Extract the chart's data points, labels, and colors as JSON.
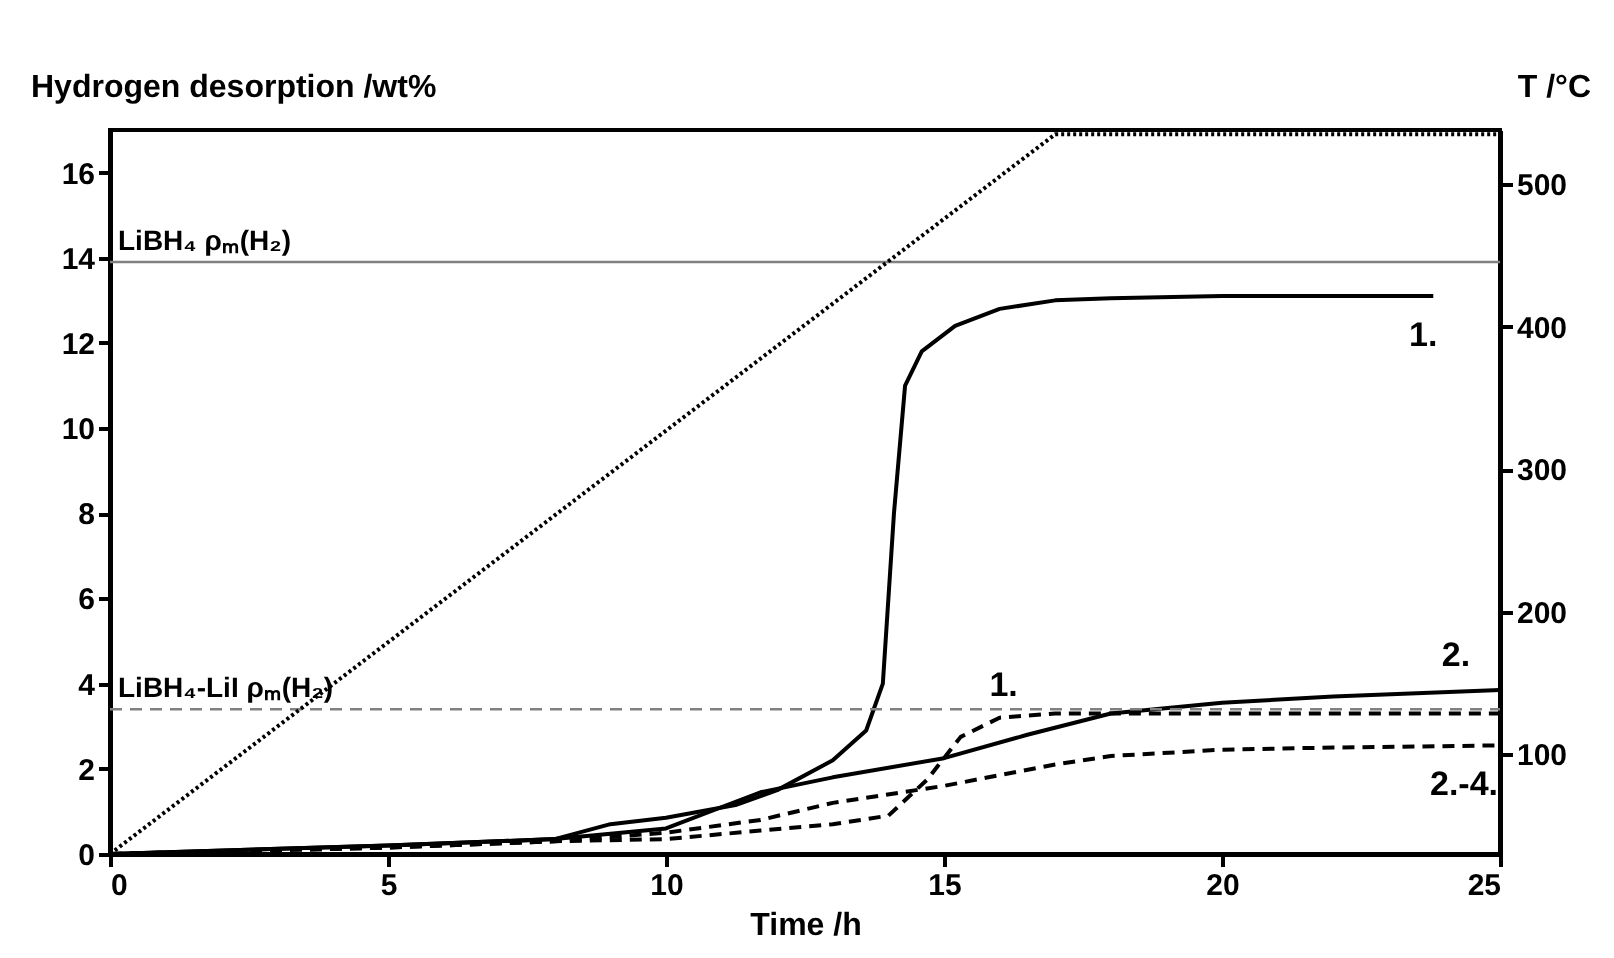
{
  "chart_data": {
    "type": "line",
    "xlabel": "Time /h",
    "ylabel": "Hydrogen desorption /wt%",
    "y2label": "T /°C",
    "xlim": [
      0,
      25
    ],
    "xticks": [
      0,
      5,
      10,
      15,
      20,
      25
    ],
    "ylim": [
      0,
      17
    ],
    "yticks": [
      0,
      2,
      4,
      6,
      8,
      10,
      12,
      14,
      16
    ],
    "y2lim": [
      30,
      538
    ],
    "y2ticks": [
      100,
      200,
      300,
      400,
      500
    ],
    "grid": false,
    "marker": "none",
    "series": [
      {
        "color": "#000000",
        "line_style": "dotted",
        "axis": "y2",
        "x": [
          0,
          17,
          25
        ],
        "values": [
          30,
          535,
          535
        ]
      },
      {
        "name": "1.",
        "color": "#000000",
        "line_style": "solid",
        "x": [
          0,
          5,
          8,
          9,
          10,
          11.25,
          12,
          13,
          13.6,
          13.9,
          14.1,
          14.3,
          14.6,
          15.2,
          16,
          17,
          18,
          20,
          23.8
        ],
        "values": [
          0,
          0.2,
          0.35,
          0.7,
          0.85,
          1.15,
          1.5,
          2.2,
          2.9,
          4,
          8,
          11,
          11.8,
          12.4,
          12.8,
          13,
          13.05,
          13.1,
          13.1
        ]
      },
      {
        "name": "2.",
        "color": "#000000",
        "line_style": "solid",
        "x": [
          0,
          5,
          8,
          10,
          11.7,
          13,
          15,
          16.5,
          18,
          20,
          22,
          25
        ],
        "values": [
          0,
          0.2,
          0.35,
          0.6,
          1.45,
          1.8,
          2.25,
          2.8,
          3.3,
          3.55,
          3.7,
          3.85
        ]
      },
      {
        "name": "1.",
        "color": "#000000",
        "line_style": "dashed",
        "x": [
          0,
          5,
          8,
          10,
          11.7,
          13,
          14,
          14.7,
          15.3,
          16,
          17,
          20,
          25
        ],
        "values": [
          0,
          0.15,
          0.3,
          0.35,
          0.55,
          0.7,
          0.9,
          1.75,
          2.75,
          3.2,
          3.3,
          3.3,
          3.3
        ]
      },
      {
        "name": "2.-4.",
        "color": "#000000",
        "line_style": "dashed",
        "x": [
          0,
          5,
          8,
          10,
          11.7,
          13,
          15,
          17,
          18,
          20,
          22,
          25
        ],
        "values": [
          0,
          0.15,
          0.3,
          0.5,
          0.8,
          1.2,
          1.6,
          2.1,
          2.3,
          2.45,
          2.5,
          2.55
        ]
      }
    ],
    "ref_lines": [
      {
        "axis": "y",
        "value": 13.9,
        "label": "LiBH₄ ρₘ(H₂)",
        "color": "#808080",
        "line_style": "solid"
      },
      {
        "axis": "y",
        "value": 3.4,
        "label": "LiBH₄-LiI ρₘ(H₂)",
        "color": "#808080",
        "line_style": "dashed"
      }
    ]
  }
}
